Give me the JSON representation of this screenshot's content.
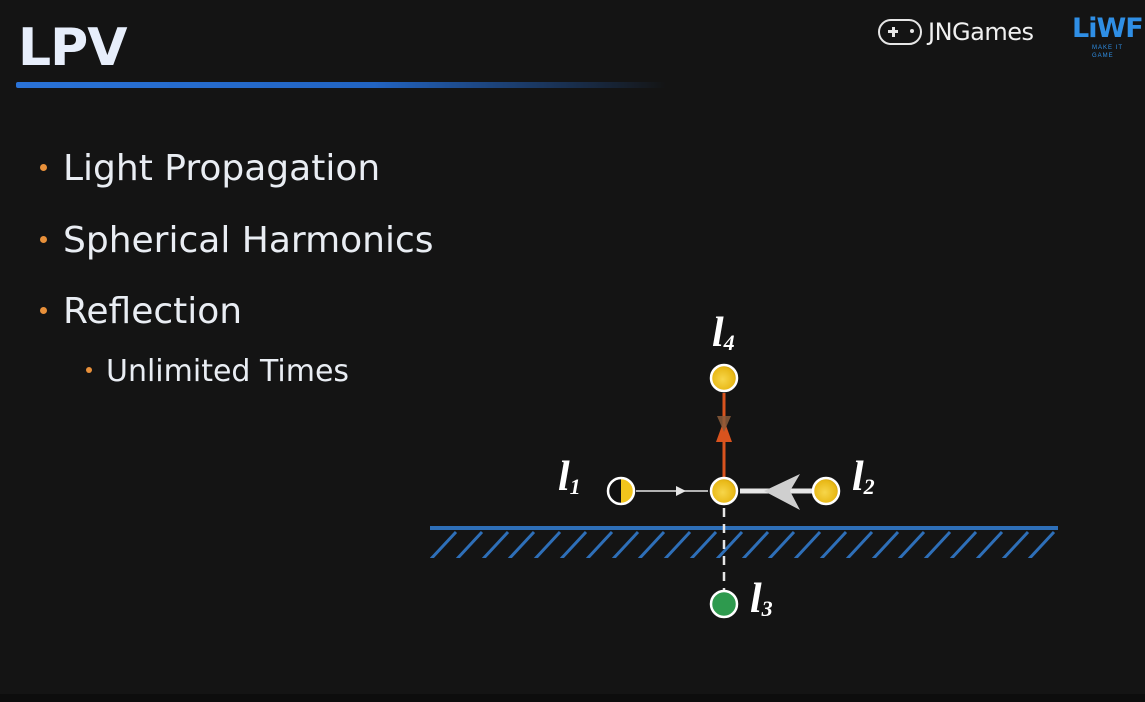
{
  "slide": {
    "title": "LPV",
    "logos": {
      "jngames": "JNGames",
      "liwf": "LiWF",
      "liwf_tagline": "MAKE IT GAME"
    },
    "bullets": [
      {
        "text": "Light Propagation",
        "level": 1
      },
      {
        "text": "Spherical Harmonics",
        "level": 1
      },
      {
        "text": "Reflection",
        "level": 1
      },
      {
        "text": "Unlimited Times",
        "level": 2
      }
    ],
    "diagram": {
      "labels": {
        "l1": {
          "letter": "l",
          "sub": "1"
        },
        "l2": {
          "letter": "l",
          "sub": "2"
        },
        "l3": {
          "letter": "l",
          "sub": "3"
        },
        "l4": {
          "letter": "l",
          "sub": "4"
        }
      },
      "colors": {
        "surface": "#2e6fb8",
        "node_yellow": "#f2c51c",
        "node_green": "#2e9a4e",
        "arrow_orange": "#d9531e",
        "bullet_orange": "#e8903a",
        "title_underline": "#2a73d8"
      }
    }
  }
}
